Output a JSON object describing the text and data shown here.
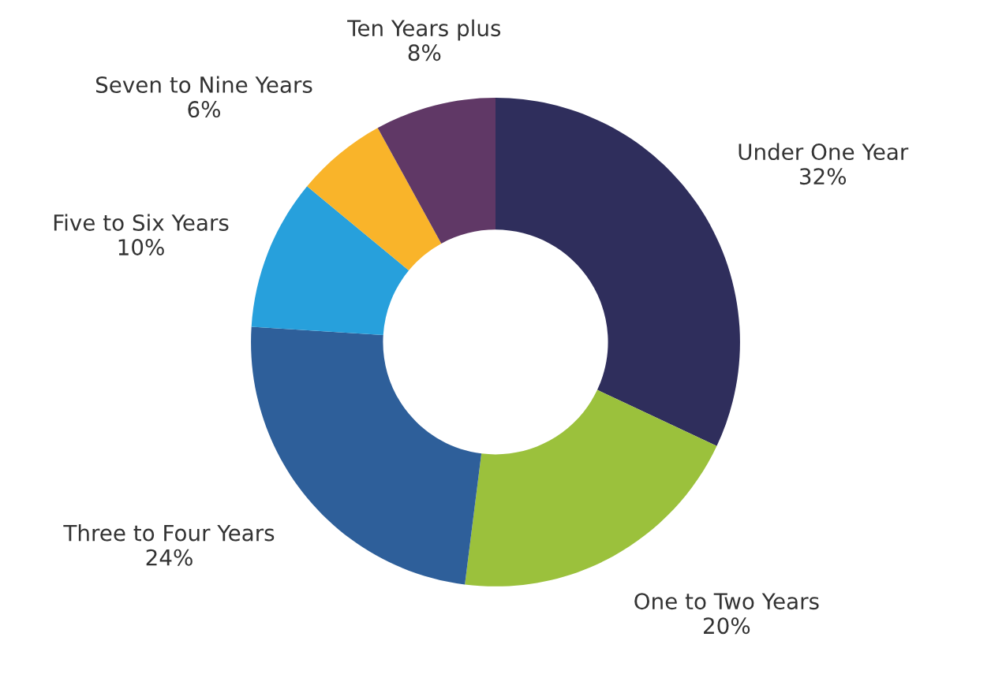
{
  "chart_data": {
    "type": "donut",
    "categories": [
      "Under One Year",
      "One to Two Years",
      "Three to Four Years",
      "Five to Six Years",
      "Seven to Nine Years",
      "Ten Years plus"
    ],
    "values": [
      32,
      20,
      24,
      10,
      6,
      8
    ],
    "colors": [
      "#2f2e5c",
      "#9bc13c",
      "#2e5f9a",
      "#27a0dc",
      "#f9b42a",
      "#603866"
    ],
    "value_labels": [
      "32%",
      "20%",
      "24%",
      "10%",
      "6%",
      "8%"
    ],
    "legend": false
  }
}
